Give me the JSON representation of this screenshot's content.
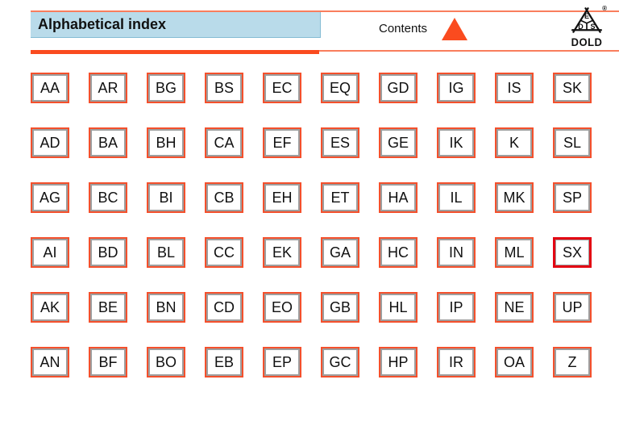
{
  "header": {
    "title": "Alphabetical index",
    "contents_label": "Contents",
    "accent_color": "#fa4b1f",
    "rule_light_color": "#f97e5d",
    "title_bg_color": "#b9dbea"
  },
  "logo": {
    "brand": "DOLD",
    "triangle_letters": [
      "E",
      "D",
      "S"
    ],
    "registered_mark": "®"
  },
  "index_grid": {
    "button_border_color": "#f4502c",
    "highlight_border_color": "#e30613",
    "highlighted": "SX",
    "rows": [
      [
        "AA",
        "AR",
        "BG",
        "BS",
        "EC",
        "EQ",
        "GD",
        "IG",
        "IS",
        "SK"
      ],
      [
        "AD",
        "BA",
        "BH",
        "CA",
        "EF",
        "ES",
        "GE",
        "IK",
        "K",
        "SL"
      ],
      [
        "AG",
        "BC",
        "BI",
        "CB",
        "EH",
        "ET",
        "HA",
        "IL",
        "MK",
        "SP"
      ],
      [
        "AI",
        "BD",
        "BL",
        "CC",
        "EK",
        "GA",
        "HC",
        "IN",
        "ML",
        "SX"
      ],
      [
        "AK",
        "BE",
        "BN",
        "CD",
        "EO",
        "GB",
        "HL",
        "IP",
        "NE",
        "UP"
      ],
      [
        "AN",
        "BF",
        "BO",
        "EB",
        "EP",
        "GC",
        "HP",
        "IR",
        "OA",
        "Z"
      ]
    ]
  }
}
